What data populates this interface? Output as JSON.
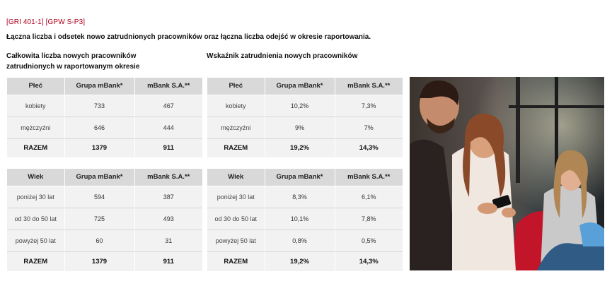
{
  "header": {
    "ref": "[GRI 401-1] [GPW S-P3]",
    "subtitle": "Łączna liczba i odsetek nowo zatrudnionych pracowników oraz łączna liczba odejść w okresie raportowania."
  },
  "left_heading": "Całkowita liczba nowych pracowników zatrudnionych w raportowanym okresie",
  "right_heading": "Wskaźnik zatrudnienia nowych pracowników",
  "tables": {
    "gender_count": {
      "headers": [
        "Płeć",
        "Grupa mBank*",
        "mBank S.A.**"
      ],
      "rows": [
        [
          "kobiety",
          "733",
          "467"
        ],
        [
          "mężczyźni",
          "646",
          "444"
        ],
        [
          "RAZEM",
          "1379",
          "911"
        ]
      ]
    },
    "gender_rate": {
      "headers": [
        "Płeć",
        "Grupa mBank*",
        "mBank S.A.**"
      ],
      "rows": [
        [
          "kobiety",
          "10,2%",
          "7,3%"
        ],
        [
          "mężczyźni",
          "9%",
          "7%"
        ],
        [
          "RAZEM",
          "19,2%",
          "14,3%"
        ]
      ]
    },
    "age_count": {
      "headers": [
        "Wiek",
        "Grupa mBank*",
        "mBank S.A.**"
      ],
      "rows": [
        [
          "poniżej 30 lat",
          "594",
          "387"
        ],
        [
          "od 30 do 50 lat",
          "725",
          "493"
        ],
        [
          "powyżej 50 lat",
          "60",
          "31"
        ],
        [
          "RAZEM",
          "1379",
          "911"
        ]
      ]
    },
    "age_rate": {
      "headers": [
        "Wiek",
        "Grupa mBank*",
        "mBank S.A.**"
      ],
      "rows": [
        [
          "poniżej 30 lat",
          "8,3%",
          "6,1%"
        ],
        [
          "od 30 do 50 lat",
          "10,1%",
          "7,8%"
        ],
        [
          "powyżej 50 lat",
          "0,8%",
          "0,5%"
        ],
        [
          "RAZEM",
          "19,2%",
          "14,3%"
        ]
      ]
    }
  },
  "colors": {
    "accent": "#b0001e",
    "header_bg": "#d9d9d9",
    "cell_bg": "#f2f2f2"
  }
}
